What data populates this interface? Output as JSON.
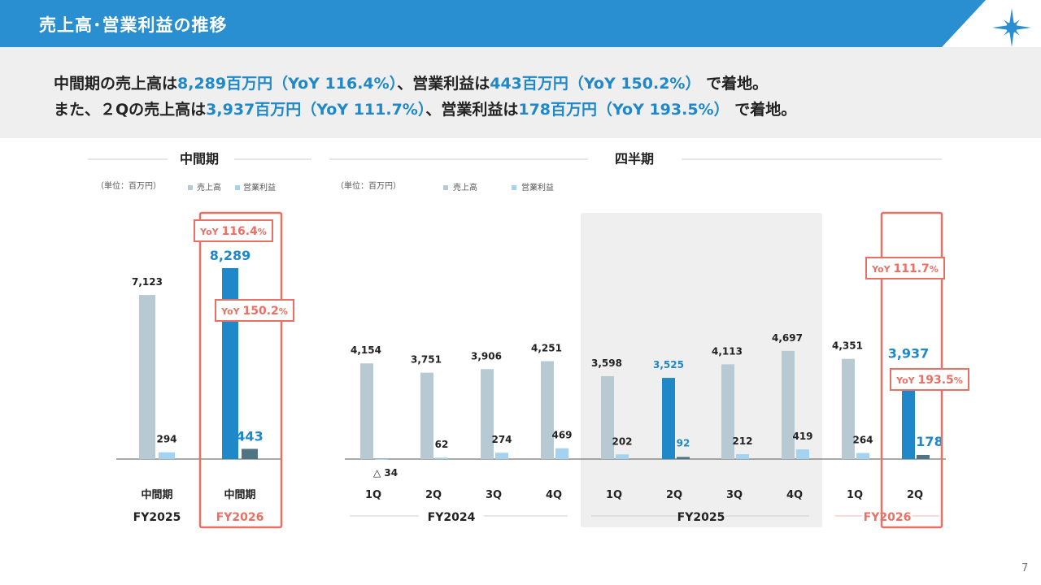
{
  "header": {
    "title": "売上高･営業利益の推移",
    "logo_icon": "compass-star-icon",
    "bar_color": "#2a8fd0"
  },
  "summary": {
    "line1": {
      "t1": "中間期の売上高は",
      "v1": "8,289百万円（YoY 116.4%）",
      "t2": "、営業利益は",
      "v2": "443百万円（YoY 150.2%）",
      "t3": " で着地。"
    },
    "line2": {
      "t1": "また、２Qの売上高は",
      "v1": "3,937百万円（YoY 111.7%）",
      "t2": "、営業利益は",
      "v2": "178百万円（YoY 193.5%）",
      "t3": " で着地。"
    }
  },
  "page_number": "7",
  "chart_data": [
    {
      "type": "bar",
      "title": "中間期",
      "unit": "（単位：百万円）",
      "legend": [
        "売上高",
        "営業利益"
      ],
      "categories": [
        "中間期",
        "中間期"
      ],
      "periods": [
        "FY2025",
        "FY2026"
      ],
      "series": [
        {
          "name": "売上高",
          "values": [
            7123,
            8289
          ],
          "labels": [
            "7,123",
            "8,289"
          ]
        },
        {
          "name": "営業利益",
          "values": [
            294,
            443
          ],
          "labels": [
            "294",
            "443"
          ]
        }
      ],
      "annotations": [
        {
          "text": "YoY 116.4%",
          "series": "売上高",
          "index": 1
        },
        {
          "text": "YoY 150.2%",
          "series": "営業利益",
          "index": 1
        }
      ],
      "highlight": "FY2026"
    },
    {
      "type": "bar",
      "title": "四半期",
      "unit": "（単位：百万円）",
      "legend": [
        "売上高",
        "営業利益"
      ],
      "categories": [
        "1Q",
        "2Q",
        "3Q",
        "4Q",
        "1Q",
        "2Q",
        "3Q",
        "4Q",
        "1Q",
        "2Q"
      ],
      "groups": [
        {
          "label": "FY2024",
          "count": 4
        },
        {
          "label": "FY2025",
          "count": 4
        },
        {
          "label": "FY2026",
          "count": 2
        }
      ],
      "series": [
        {
          "name": "売上高",
          "values": [
            4154,
            3751,
            3906,
            4251,
            3598,
            3525,
            4113,
            4697,
            4351,
            3937
          ],
          "labels": [
            "4,154",
            "3,751",
            "3,906",
            "4,251",
            "3,598",
            "3,525",
            "4,113",
            "4,697",
            "4,351",
            "3,937"
          ]
        },
        {
          "name": "営業利益",
          "values": [
            -34,
            62,
            274,
            469,
            202,
            92,
            212,
            419,
            264,
            178
          ],
          "labels": [
            "△ 34",
            "62",
            "274",
            "469",
            "202",
            "92",
            "212",
            "419",
            "264",
            "178"
          ]
        }
      ],
      "annotations": [
        {
          "text": "YoY 111.7%",
          "series": "売上高",
          "index": 9
        },
        {
          "text": "YoY 193.5%",
          "series": "営業利益",
          "index": 9
        }
      ],
      "highlight": "FY2026"
    }
  ],
  "colors": {
    "sales": "#b7cad4",
    "profit": "#a3d3f0",
    "sales_hl": "#1e88c8",
    "profit_hl": "#4f7585",
    "accent_blue": "#1e88c8",
    "accent_red": "#ea7065",
    "shade": "#efefef"
  }
}
